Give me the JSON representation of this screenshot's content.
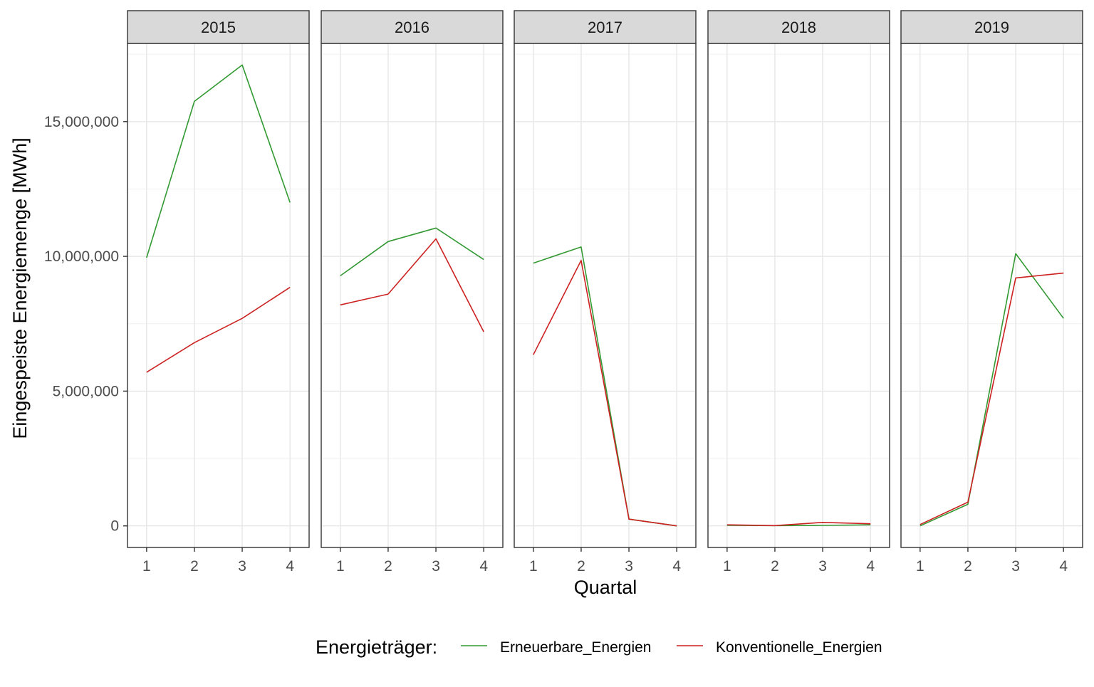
{
  "chart_data": {
    "type": "line",
    "facet_variable": "year",
    "facets": [
      "2015",
      "2016",
      "2017",
      "2018",
      "2019"
    ],
    "x": [
      1,
      2,
      3,
      4
    ],
    "xlabel": "Quartal",
    "ylabel": "Eingespeiste Energiemenge [MWh]",
    "ylim": [
      -800000,
      17900000
    ],
    "yticks": [
      0,
      5000000,
      10000000,
      15000000
    ],
    "ytick_labels": [
      "0",
      "5,000,000",
      "10,000,000",
      "15,000,000"
    ],
    "xtick_labels": [
      "1",
      "2",
      "3",
      "4"
    ],
    "grid": true,
    "legend": {
      "title": "Energieträger:",
      "position": "bottom",
      "entries": [
        {
          "label": "Erneuerbare_Energien",
          "color": "#339933"
        },
        {
          "label": "Konventionelle_Energien",
          "color": "#cc2222"
        }
      ]
    },
    "series": [
      {
        "name": "Erneuerbare_Energien",
        "color": "#339933",
        "values": {
          "2015": [
            9950000,
            15750000,
            17100000,
            12000000
          ],
          "2016": [
            9280000,
            10550000,
            11050000,
            9880000
          ],
          "2017": [
            9750000,
            10350000,
            250000,
            0
          ],
          "2018": [
            20000,
            10000,
            20000,
            40000
          ],
          "2019": [
            0,
            800000,
            10100000,
            7700000
          ]
        }
      },
      {
        "name": "Konventionelle_Energien",
        "color": "#cc2222",
        "values": {
          "2015": [
            5700000,
            6800000,
            7700000,
            8850000
          ],
          "2016": [
            8200000,
            8600000,
            10650000,
            7200000
          ],
          "2017": [
            6350000,
            9850000,
            250000,
            0
          ],
          "2018": [
            40000,
            10000,
            130000,
            80000
          ],
          "2019": [
            50000,
            880000,
            9200000,
            9380000
          ]
        }
      }
    ]
  }
}
